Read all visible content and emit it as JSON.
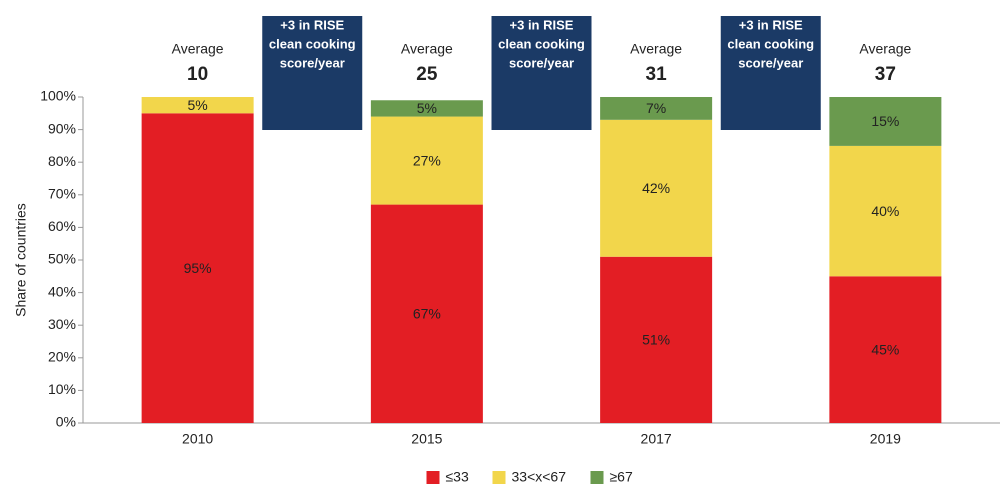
{
  "chart_data": {
    "type": "stacked_bar",
    "y_label": "Share of countries",
    "categories": [
      "2010",
      "2015",
      "2017",
      "2019"
    ],
    "series": [
      {
        "name": "≤33",
        "color": "#e31e24",
        "values": [
          95,
          67,
          51,
          45
        ],
        "value_labels": [
          "95%",
          "67%",
          "51%",
          "45%"
        ]
      },
      {
        "name": "33<x<67",
        "color": "#f2d64b",
        "values": [
          5,
          27,
          42,
          40
        ],
        "value_labels": [
          "5%",
          "27%",
          "42%",
          "40%"
        ]
      },
      {
        "name": "≥67",
        "color": "#6a9a4e",
        "values": [
          null,
          5,
          7,
          15
        ],
        "value_labels": [
          null,
          "5%",
          "7%",
          "15%"
        ]
      }
    ],
    "ylim": [
      0,
      100
    ],
    "yticks": [
      {
        "value": 0,
        "label": "0%"
      },
      {
        "value": 10,
        "label": "10%"
      },
      {
        "value": 20,
        "label": "20%"
      },
      {
        "value": 30,
        "label": "30%"
      },
      {
        "value": 40,
        "label": "40%"
      },
      {
        "value": 50,
        "label": "50%"
      },
      {
        "value": 60,
        "label": "60%"
      },
      {
        "value": 70,
        "label": "70%"
      },
      {
        "value": 80,
        "label": "80%"
      },
      {
        "value": 90,
        "label": "90%"
      },
      {
        "value": 100,
        "label": "100%"
      }
    ],
    "average_label": "Average",
    "averages": [
      10,
      25,
      31,
      37
    ],
    "box_text": [
      "+3 in RISE",
      "clean cooking",
      "score/year"
    ],
    "legend": "bottom"
  }
}
